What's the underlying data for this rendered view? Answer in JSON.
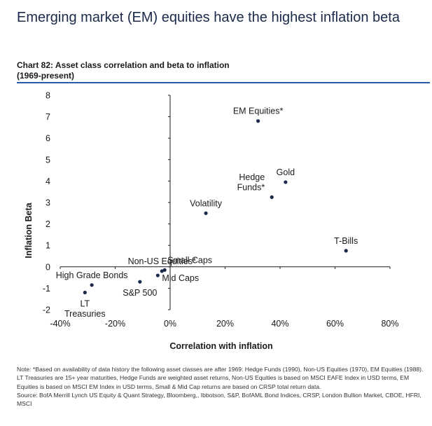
{
  "headline": "Emerging market (EM) equities have the highest inflation beta",
  "chart_title_line1": "Chart 82: Asset class correlation and beta to inflation",
  "chart_title_line2": "(1969-present)",
  "note": "Note: *Based on availability of data history the following asset classes are after 1969: Hedge Funds (1990), Non-US Equities (1970), EM Equities (1988). LT Treasuries are 15+ year maturities, Hedge Funds are weighted asset returns, Non-US Equities is based on MSCI EAFE Index in USD terms, EM Equities is based on MSCI EM Index in USD terms, Small & Mid Cap returns are based on CRSP total return data.",
  "source": "Source: BofA Merrill Lynch US Equity & Quant Strategy, Bloomberg,, Ibbotson, S&P, BofAML Bond Indices, CRSP, London Bullion Market, CBOE, HFRI, MSCI",
  "colors": {
    "marker": "#1b2a4a",
    "headline": "#1b2a4a",
    "rule": "#2a5da8"
  },
  "chart_data": {
    "type": "scatter",
    "xlabel": "Correlation with inflation",
    "ylabel": "Inflation Beta",
    "xlim": [
      -40,
      80
    ],
    "ylim": [
      -2,
      8
    ],
    "x_ticks": [
      -40,
      -20,
      0,
      20,
      40,
      60,
      80
    ],
    "x_tick_labels": [
      "-40%",
      "-20%",
      "0%",
      "20%",
      "40%",
      "60%",
      "80%"
    ],
    "y_ticks": [
      -2,
      -1,
      0,
      1,
      2,
      3,
      4,
      5,
      6,
      7,
      8
    ],
    "y_tick_labels": [
      "-2",
      "-1",
      "0",
      "1",
      "2",
      "3",
      "4",
      "5",
      "6",
      "7",
      "8"
    ],
    "grid": false,
    "points": [
      {
        "label": [
          "EM Equities*"
        ],
        "x": 32,
        "y": 6.8,
        "anchor": "middle",
        "side": "above"
      },
      {
        "label": [
          "Gold"
        ],
        "x": 42,
        "y": 3.95,
        "anchor": "middle",
        "side": "above"
      },
      {
        "label": [
          "Hedge",
          "Funds*"
        ],
        "x": 37,
        "y": 3.25,
        "anchor": "end",
        "side": "above"
      },
      {
        "label": [
          "Volatility"
        ],
        "x": 13,
        "y": 2.5,
        "anchor": "middle",
        "side": "above"
      },
      {
        "label": [
          "T-Bills"
        ],
        "x": 64,
        "y": 0.75,
        "anchor": "middle",
        "side": "above"
      },
      {
        "label": [
          "Small Caps"
        ],
        "x": -2,
        "y": -0.15,
        "anchor": "start",
        "side": "above-right"
      },
      {
        "label": [
          "Non-US Equities*"
        ],
        "x": -3,
        "y": -0.2,
        "anchor": "middle",
        "side": "above"
      },
      {
        "label": [
          "Mid Caps"
        ],
        "x": -4.5,
        "y": -0.4,
        "anchor": "start",
        "side": "right"
      },
      {
        "label": [
          "S&P 500"
        ],
        "x": -11,
        "y": -0.7,
        "anchor": "middle",
        "side": "below"
      },
      {
        "label": [
          "High Grade Bonds"
        ],
        "x": -28.5,
        "y": -0.85,
        "anchor": "middle",
        "side": "above"
      },
      {
        "label": [
          "LT",
          "Treasuries"
        ],
        "x": -31,
        "y": -1.2,
        "anchor": "middle",
        "side": "below"
      }
    ]
  }
}
